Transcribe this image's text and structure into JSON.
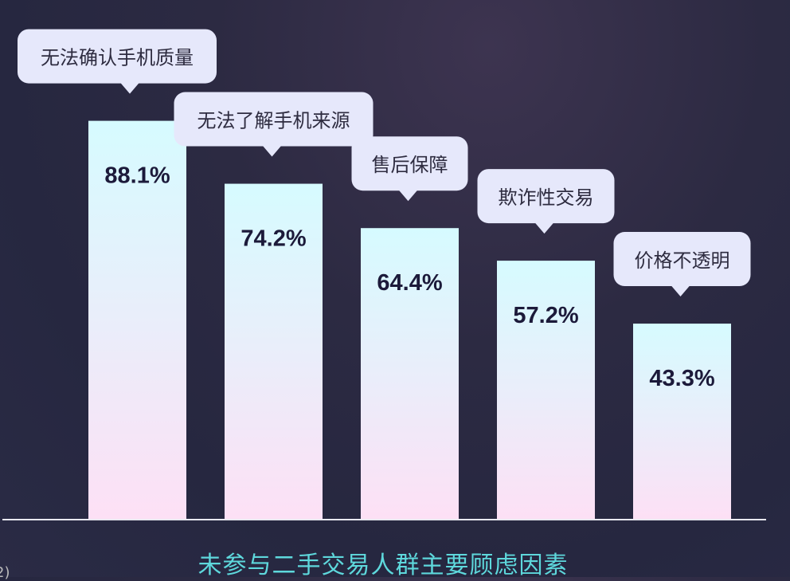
{
  "chart_data": {
    "type": "bar",
    "title": "未参与二手交易人群主要顾虑因素",
    "categories": [
      "无法确认手机质量",
      "无法了解手机来源",
      "售后保障",
      "欺诈性交易",
      "价格不透明"
    ],
    "values": [
      88.1,
      74.2,
      64.4,
      57.2,
      43.3
    ],
    "value_labels": [
      "88.1%",
      "74.2%",
      "64.4%",
      "57.2%",
      "43.3%"
    ],
    "unit": "%",
    "ylim": [
      0,
      100
    ],
    "grid": false,
    "colors": {
      "bar_top": "#d6fbff",
      "bar_bottom": "#fde0f5",
      "label_bubble": "#e6e8fb",
      "title": "#5ed8dc"
    }
  },
  "partial_text": "2)"
}
